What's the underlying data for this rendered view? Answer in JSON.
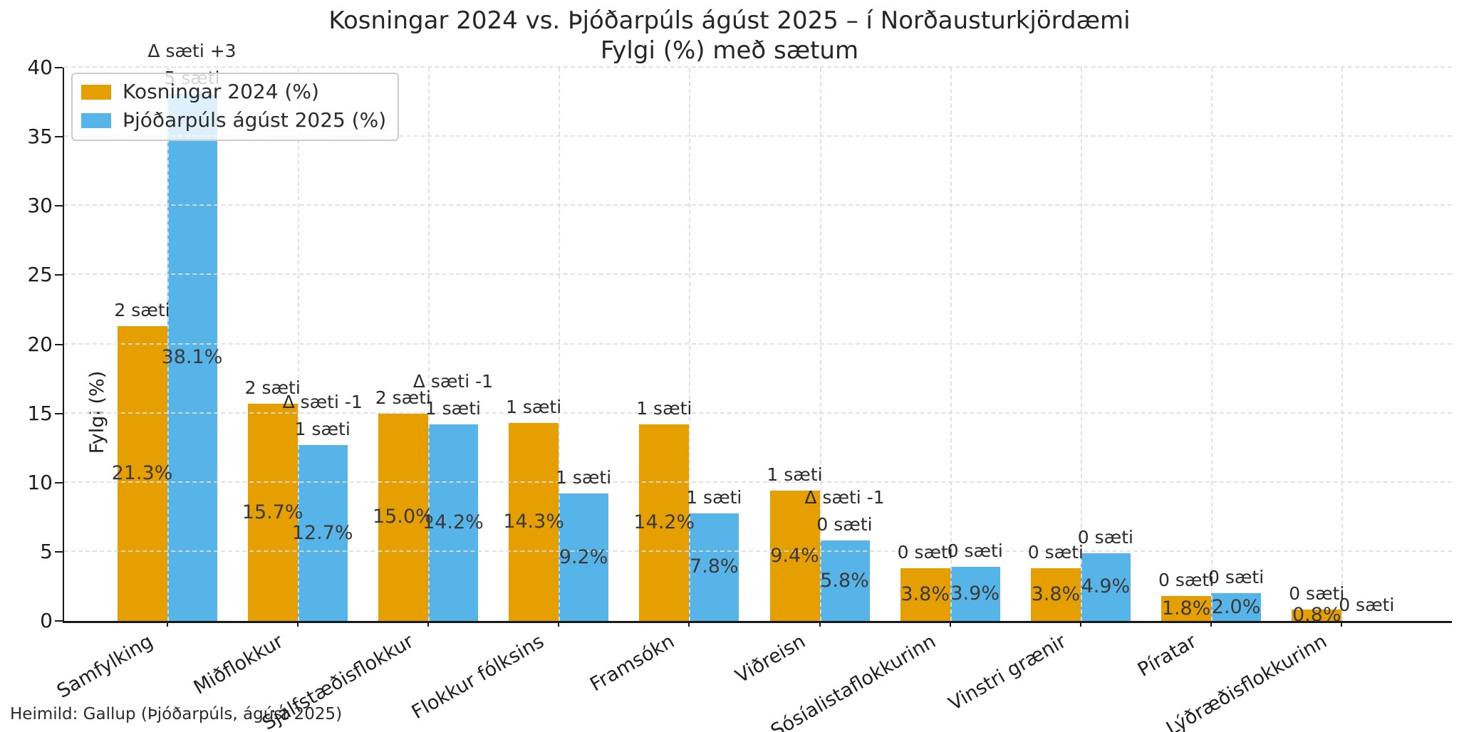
{
  "title": {
    "line1": "Kosningar 2024 vs. Þjóðarpúls ágúst 2025 – í Norðausturkjördæmi",
    "line2": "Fylgi (%) með sætum"
  },
  "footer": "Heimild: Gallup (Þjóðarpúls, ágúst 2025)",
  "colors": {
    "kosningar": "#E69F00",
    "thjodarpuls": "#56B4E9",
    "grid": "#dedede",
    "axis": "#1a1a1a",
    "text": "#2b2b2b"
  },
  "legend": {
    "items": [
      {
        "label": "Kosningar 2024 (%)",
        "color_key": "kosningar"
      },
      {
        "label": "Þjóðarpúls ágúst 2025 (%)",
        "color_key": "thjodarpuls"
      }
    ]
  },
  "chart_data": {
    "type": "bar",
    "title": "Kosningar 2024 vs. Þjóðarpúls ágúst 2025 – í Norðausturkjördæmi",
    "subtitle": "Fylgi (%) með sætum",
    "xlabel": "",
    "ylabel": "Fylgi (%)",
    "ylim": [
      0,
      40
    ],
    "yticks": [
      0,
      5,
      10,
      15,
      20,
      25,
      30,
      35,
      40
    ],
    "grid": true,
    "legend_position": "upper-left",
    "source_note": "Heimild: Gallup (Þjóðarpúls, ágúst 2025)",
    "categories": [
      "Samfylking",
      "Miðflokkur",
      "Sjálfstæðisflokkur",
      "Flokkur fólksins",
      "Framsókn",
      "Viðreisn",
      "Sósíalistaflokkurinn",
      "Vinstri grænir",
      "Píratar",
      "Lýðræðisflokkurinn"
    ],
    "series": [
      {
        "name": "Kosningar 2024 (%)",
        "color": "#E69F00",
        "values": [
          21.3,
          15.7,
          15.0,
          14.3,
          14.2,
          9.4,
          3.8,
          3.8,
          1.8,
          0.8
        ],
        "seat_labels": [
          "2 sæti",
          "2 sæti",
          "2 sæti",
          "1 sæti",
          "1 sæti",
          "1 sæti",
          "0 sæti",
          "0 sæti",
          "0 sæti",
          "0 sæti"
        ]
      },
      {
        "name": "Þjóðarpúls ágúst 2025 (%)",
        "color": "#56B4E9",
        "values": [
          38.1,
          12.7,
          14.2,
          9.2,
          7.8,
          5.8,
          3.9,
          4.9,
          2.0,
          0.0
        ],
        "seat_labels": [
          "5 sæti",
          "1 sæti",
          "1 sæti",
          "1 sæti",
          "1 sæti",
          "0 sæti",
          "0 sæti",
          "0 sæti",
          "0 sæti",
          "0 sæti"
        ],
        "delta_labels": [
          "Δ sæti +3",
          "Δ sæti -1",
          "Δ sæti -1",
          null,
          null,
          "Δ sæti -1",
          null,
          null,
          null,
          null
        ]
      }
    ]
  }
}
